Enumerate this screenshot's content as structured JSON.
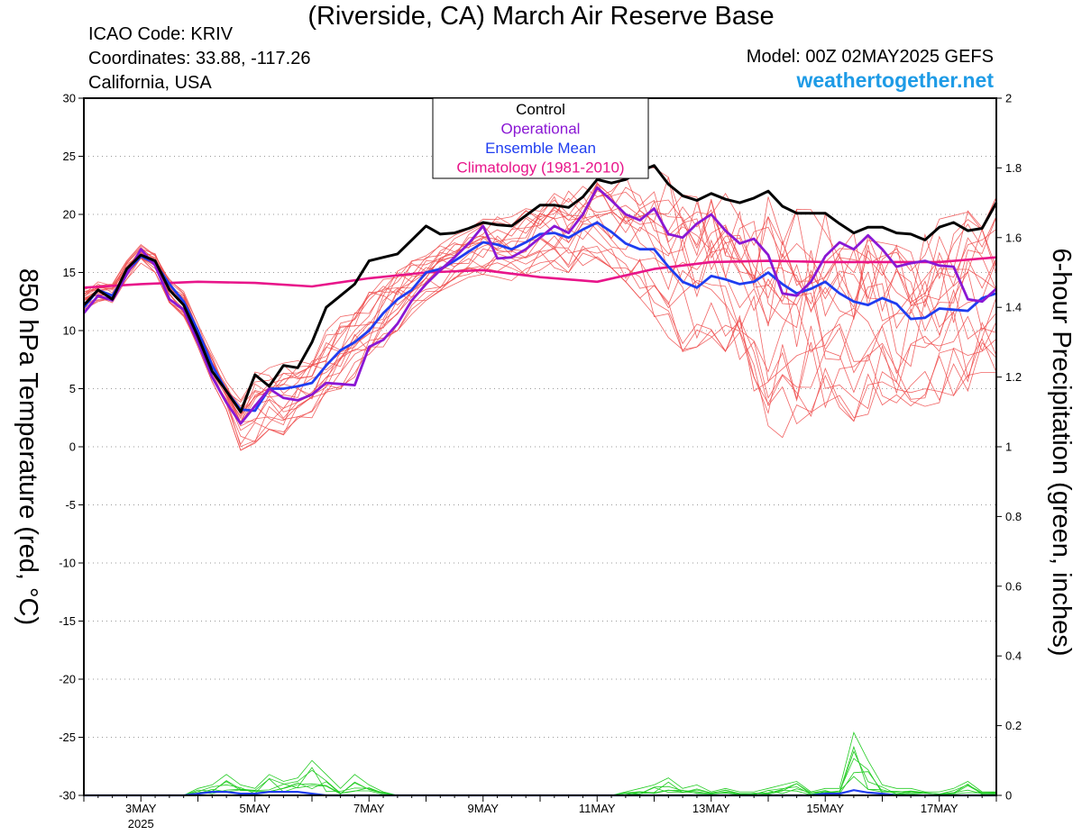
{
  "header": {
    "title": "(Riverside, CA) March Air Reserve Base",
    "icao": "ICAO Code: KRIV",
    "coordinates": "Coordinates: 33.88, -117.26",
    "region": "California, USA",
    "model": "Model: 00Z 02MAY2025 GEFS",
    "site": "weathertogether.net"
  },
  "chart_data": {
    "type": "line",
    "title": "(Riverside, CA) March Air Reserve Base",
    "ylabel_left": "850 hPa Temperature (red, °C)",
    "ylabel_right": "6-hour Precipitation (green, inches)",
    "xlabel": "",
    "x_unit": "hours since 00Z 02MAY2025",
    "xlim": [
      0,
      384
    ],
    "ylim_left": [
      -30,
      30
    ],
    "ylim_right": [
      0,
      2
    ],
    "yticks_left": [
      "30",
      "25",
      "20",
      "15",
      "10",
      "5",
      "0",
      "-5",
      "-10",
      "-15",
      "-20",
      "-25",
      "-30"
    ],
    "yticks_right": [
      "2",
      "1.8",
      "1.6",
      "1.4",
      "1.2",
      "1",
      "0.8",
      "0.6",
      "0.4",
      "0.2",
      "0"
    ],
    "xticks": [
      {
        "label": "3MAY",
        "sub": "2025",
        "hour": 24
      },
      {
        "label": "5MAY",
        "hour": 72
      },
      {
        "label": "7MAY",
        "hour": 120
      },
      {
        "label": "9MAY",
        "hour": 168
      },
      {
        "label": "11MAY",
        "hour": 216
      },
      {
        "label": "13MAY",
        "hour": 264
      },
      {
        "label": "15MAY",
        "hour": 312
      },
      {
        "label": "17MAY",
        "hour": 360
      }
    ],
    "grid": true,
    "legend_position": "top-center",
    "legend": [
      {
        "name": "Control",
        "color": "#000000"
      },
      {
        "name": "Operational",
        "color": "#8a17d4"
      },
      {
        "name": "Ensemble Mean",
        "color": "#1f3df0"
      },
      {
        "name": "Climatology (1981-2010)",
        "color": "#e8158a"
      }
    ],
    "series": [
      {
        "name": "Climatology (1981-2010)",
        "color": "#e8158a",
        "width": 2.6,
        "x": [
          0,
          24,
          48,
          72,
          96,
          120,
          144,
          168,
          192,
          216,
          240,
          264,
          288,
          312,
          336,
          360,
          384
        ],
        "y": [
          13.7,
          14.0,
          14.2,
          14.1,
          13.8,
          14.5,
          15.0,
          15.2,
          14.6,
          14.2,
          15.3,
          15.9,
          16.0,
          15.9,
          15.9,
          15.9,
          16.3
        ]
      },
      {
        "name": "Ensemble Mean",
        "color": "#1f3df0",
        "width": 2.8,
        "x": [
          0,
          6,
          12,
          18,
          24,
          30,
          36,
          42,
          48,
          54,
          60,
          66,
          72,
          78,
          84,
          90,
          96,
          102,
          108,
          114,
          120,
          126,
          132,
          138,
          144,
          150,
          156,
          162,
          168,
          174,
          180,
          186,
          192,
          198,
          204,
          210,
          216,
          222,
          228,
          234,
          240,
          246,
          252,
          258,
          264,
          270,
          276,
          282,
          288,
          294,
          300,
          306,
          312,
          318,
          324,
          330,
          336,
          342,
          348,
          354,
          360,
          366,
          372,
          378,
          384
        ],
        "y": [
          12.0,
          13.5,
          13.0,
          15.0,
          16.4,
          15.8,
          14.0,
          12.5,
          10.0,
          7.0,
          4.8,
          3.2,
          3.1,
          5.0,
          5.0,
          5.2,
          5.5,
          7.0,
          8.3,
          9.0,
          10.0,
          11.5,
          12.7,
          13.5,
          15.0,
          15.3,
          16.0,
          16.8,
          17.6,
          17.4,
          17.0,
          17.6,
          18.3,
          18.4,
          18.0,
          18.7,
          19.3,
          18.5,
          17.5,
          17.0,
          17.0,
          15.5,
          14.2,
          13.7,
          14.7,
          14.4,
          14.0,
          14.2,
          15.0,
          14.0,
          13.2,
          13.6,
          14.2,
          13.2,
          12.5,
          12.2,
          12.8,
          12.3,
          11.0,
          11.1,
          11.9,
          11.8,
          11.7,
          12.8,
          13.2
        ]
      },
      {
        "name": "Operational",
        "color": "#8a17d4",
        "width": 2.8,
        "x": [
          0,
          6,
          12,
          18,
          24,
          30,
          36,
          42,
          48,
          54,
          60,
          66,
          72,
          78,
          84,
          90,
          96,
          102,
          108,
          114,
          120,
          126,
          132,
          138,
          144,
          150,
          156,
          162,
          168,
          174,
          180,
          186,
          192,
          198,
          204,
          210,
          216,
          222,
          228,
          234,
          240,
          246,
          252,
          258,
          264,
          270,
          276,
          282,
          288,
          294,
          300,
          306,
          312,
          318,
          324,
          330,
          336,
          342,
          348,
          354,
          360,
          366,
          372,
          378,
          384
        ],
        "y": [
          11.5,
          13.0,
          12.6,
          14.8,
          17.0,
          15.6,
          12.7,
          11.8,
          9.0,
          6.0,
          3.8,
          2.0,
          3.5,
          5.0,
          4.2,
          4.0,
          4.5,
          5.5,
          5.4,
          5.3,
          8.6,
          9.2,
          10.6,
          12.6,
          14.0,
          15.2,
          16.3,
          17.5,
          19.0,
          16.2,
          16.3,
          17.0,
          18.0,
          19.0,
          18.4,
          20.0,
          22.3,
          21.2,
          20.0,
          19.5,
          20.5,
          18.3,
          18.0,
          19.2,
          20.0,
          18.6,
          17.5,
          17.9,
          16.5,
          13.2,
          13.0,
          14.2,
          16.4,
          17.6,
          17.0,
          18.2,
          17.0,
          15.5,
          15.8,
          16.0,
          15.6,
          15.5,
          12.7,
          12.5,
          13.6
        ]
      },
      {
        "name": "Control",
        "color": "#000000",
        "width": 3,
        "x": [
          0,
          6,
          12,
          18,
          24,
          30,
          36,
          42,
          48,
          54,
          60,
          66,
          72,
          78,
          84,
          90,
          96,
          102,
          108,
          114,
          120,
          126,
          132,
          138,
          144,
          150,
          156,
          162,
          168,
          174,
          180,
          186,
          192,
          198,
          204,
          210,
          216,
          222,
          228,
          234,
          240,
          246,
          252,
          258,
          264,
          270,
          276,
          282,
          288,
          294,
          300,
          306,
          312,
          318,
          324,
          330,
          336,
          342,
          348,
          354,
          360,
          366,
          372,
          378,
          384
        ],
        "y": [
          12.2,
          13.5,
          12.7,
          15.3,
          16.5,
          16.0,
          13.5,
          12.2,
          9.5,
          6.5,
          4.8,
          3.0,
          6.2,
          5.2,
          7.0,
          6.8,
          9.0,
          12.0,
          13.0,
          14.0,
          16.0,
          16.3,
          16.6,
          17.8,
          19.0,
          18.3,
          18.4,
          18.8,
          19.3,
          19.1,
          19.0,
          19.9,
          20.8,
          20.8,
          20.6,
          21.5,
          23.0,
          22.7,
          23.0,
          23.7,
          24.2,
          22.6,
          21.6,
          21.2,
          21.8,
          21.3,
          21.0,
          21.4,
          22.0,
          20.7,
          20.1,
          20.1,
          20.1,
          19.2,
          18.4,
          18.9,
          18.9,
          18.4,
          18.3,
          17.8,
          18.9,
          19.3,
          18.6,
          18.8,
          21.0
        ]
      }
    ],
    "ensemble_members": {
      "color": "#ef4a4a",
      "count": 20,
      "spread_y": [
        [
          11.8,
          13.6
        ],
        [
          12.5,
          14.3
        ],
        [
          12.4,
          14.0
        ],
        [
          14.4,
          16.0
        ],
        [
          15.8,
          17.4
        ],
        [
          15.0,
          16.8
        ],
        [
          12.4,
          14.6
        ],
        [
          11.2,
          13.4
        ],
        [
          8.6,
          10.8
        ],
        [
          5.6,
          8.0
        ],
        [
          3.2,
          5.6
        ],
        [
          -0.3,
          4.0
        ],
        [
          0.3,
          6.8
        ],
        [
          1.5,
          6.8
        ],
        [
          1.0,
          7.2
        ],
        [
          1.8,
          7.4
        ],
        [
          2.5,
          8.2
        ],
        [
          4.0,
          10.0
        ],
        [
          5.0,
          11.2
        ],
        [
          6.0,
          12.6
        ],
        [
          7.4,
          13.4
        ],
        [
          8.6,
          14.4
        ],
        [
          10.0,
          15.2
        ],
        [
          11.4,
          16.0
        ],
        [
          12.6,
          16.8
        ],
        [
          13.4,
          17.4
        ],
        [
          14.0,
          18.2
        ],
        [
          14.6,
          19.0
        ],
        [
          14.8,
          19.6
        ],
        [
          14.6,
          20.0
        ],
        [
          14.3,
          19.8
        ],
        [
          14.8,
          20.6
        ],
        [
          15.2,
          21.4
        ],
        [
          15.4,
          21.8
        ],
        [
          15.0,
          22.0
        ],
        [
          15.6,
          22.6
        ],
        [
          16.2,
          23.2
        ],
        [
          15.4,
          23.0
        ],
        [
          14.2,
          23.6
        ],
        [
          12.8,
          24.0
        ],
        [
          11.2,
          24.0
        ],
        [
          9.4,
          23.2
        ],
        [
          8.2,
          22.4
        ],
        [
          8.6,
          21.8
        ],
        [
          9.4,
          22.0
        ],
        [
          8.2,
          21.8
        ],
        [
          6.4,
          21.4
        ],
        [
          4.8,
          21.2
        ],
        [
          1.8,
          21.6
        ],
        [
          0.8,
          21.0
        ],
        [
          1.5,
          20.6
        ],
        [
          2.2,
          20.4
        ],
        [
          3.4,
          20.4
        ],
        [
          2.6,
          19.6
        ],
        [
          2.2,
          19.0
        ],
        [
          2.8,
          18.8
        ],
        [
          3.6,
          18.8
        ],
        [
          2.2,
          18.4
        ],
        [
          2.6,
          18.6
        ],
        [
          3.4,
          19.0
        ],
        [
          3.8,
          19.6
        ],
        [
          4.4,
          20.0
        ],
        [
          4.8,
          20.4
        ],
        [
          5.6,
          21.0
        ],
        [
          6.4,
          21.5
        ]
      ]
    },
    "precip": {
      "color": "#22cc22",
      "mean_color": "#1f3df0",
      "members_max_inches": [
        0,
        0,
        0,
        0,
        0,
        0,
        0,
        0,
        0.02,
        0.03,
        0.06,
        0.03,
        0.02,
        0.06,
        0.04,
        0.05,
        0.1,
        0.06,
        0.02,
        0.06,
        0.03,
        0.01,
        0,
        0,
        0,
        0,
        0,
        0,
        0,
        0,
        0,
        0,
        0,
        0,
        0,
        0,
        0,
        0,
        0.01,
        0.02,
        0.03,
        0.05,
        0.02,
        0.03,
        0.01,
        0.02,
        0.01,
        0.01,
        0.02,
        0.03,
        0.04,
        0.01,
        0.02,
        0.02,
        0.18,
        0.1,
        0.03,
        0.02,
        0.02,
        0.01,
        0.01,
        0.02,
        0.04,
        0.01,
        0.01
      ],
      "mean_inches": [
        0,
        0,
        0,
        0,
        0,
        0,
        0,
        0,
        0.005,
        0.01,
        0.01,
        0.005,
        0.005,
        0.01,
        0.01,
        0.01,
        0.005,
        0,
        0,
        0,
        0,
        0,
        0,
        0,
        0,
        0,
        0,
        0,
        0,
        0,
        0,
        0,
        0,
        0,
        0,
        0,
        0,
        0,
        0,
        0,
        0,
        0,
        0,
        0,
        0,
        0,
        0,
        0,
        0,
        0,
        0,
        0,
        0.005,
        0.005,
        0.015,
        0.008,
        0.005,
        0,
        0,
        0,
        0,
        0,
        0,
        0,
        0
      ]
    }
  }
}
